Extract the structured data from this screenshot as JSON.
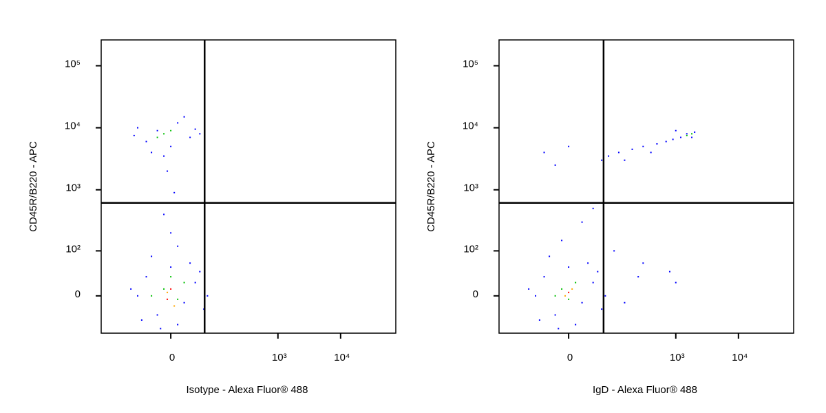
{
  "chart_data": [
    {
      "type": "scatter",
      "x_label": "Isotype - Alexa Fluor® 488",
      "y_label": "CD45R/B220 - APC",
      "xlim": [
        -250,
        76000
      ],
      "ylim": [
        -73,
        261000
      ],
      "xticks": [
        0,
        {
          "value": 1000,
          "label": "10³"
        },
        {
          "value": 10000,
          "label": "10⁴"
        }
      ],
      "yticks": [
        0,
        {
          "value": 100,
          "label": "10²"
        },
        {
          "value": 1000,
          "label": "10³"
        },
        {
          "value": 10000,
          "label": "10⁴"
        },
        {
          "value": 100000,
          "label": "10⁵"
        }
      ],
      "gate_x": 62,
      "gate_y": 614,
      "series": [
        {
          "color": "#0000ff",
          "x": [
            -40,
            -20,
            10,
            30,
            -60,
            0,
            40,
            -30,
            20,
            -10,
            50,
            -70,
            -5,
            5,
            -10,
            0,
            10,
            -60,
            -40,
            -20,
            0,
            20,
            40,
            60,
            -50,
            30,
            -30,
            10,
            50,
            -80,
            70,
            -15
          ],
          "values": [
            6000,
            9000,
            12000,
            7000,
            10000,
            5000,
            9500,
            4000,
            15000,
            3500,
            8000,
            7500,
            2000,
            900,
            400,
            200,
            120,
            0,
            30,
            -30,
            50,
            -10,
            20,
            -20,
            -40,
            60,
            80,
            -50,
            40,
            10,
            0,
            -60
          ]
        },
        {
          "color": "#00c000",
          "x": [
            -10,
            0,
            -20,
            -10,
            10,
            -30,
            0,
            20
          ],
          "values": [
            8000,
            9000,
            7000,
            10,
            -5,
            0,
            30,
            20
          ]
        },
        {
          "color": "#ffa500",
          "x": [
            -5,
            5
          ],
          "values": [
            5,
            -15
          ]
        },
        {
          "color": "#ff0000",
          "x": [
            -5,
            0
          ],
          "values": [
            -5,
            10
          ]
        }
      ]
    },
    {
      "type": "scatter",
      "x_label": "IgD - Alexa Fluor® 488",
      "y_label": "CD45R/B220 - APC",
      "xlim": [
        -250,
        76000
      ],
      "ylim": [
        -73,
        261000
      ],
      "xticks": [
        0,
        {
          "value": 1000,
          "label": "10³"
        },
        {
          "value": 10000,
          "label": "10⁴"
        }
      ],
      "yticks": [
        0,
        {
          "value": 100,
          "label": "10²"
        },
        {
          "value": 1000,
          "label": "10³"
        },
        {
          "value": 10000,
          "label": "10⁴"
        },
        {
          "value": 100000,
          "label": "10⁵"
        }
      ],
      "gate_x": 65,
      "gate_y": 614,
      "series": [
        {
          "color": "#0000ff",
          "x": [
            80,
            120,
            200,
            300,
            500,
            700,
            900,
            1200,
            1500,
            2000,
            1000,
            1800,
            400,
            150,
            60,
            -20,
            -40,
            0,
            20,
            -10,
            40,
            100,
            300,
            800,
            1000,
            250,
            150,
            -60,
            -40,
            -20,
            0,
            20,
            40,
            60,
            -50,
            30,
            -30,
            10,
            50,
            -80,
            70,
            -15
          ],
          "values": [
            3500,
            4000,
            4500,
            5000,
            5500,
            6000,
            6500,
            7000,
            8000,
            8500,
            9000,
            7000,
            4000,
            3000,
            3000,
            2500,
            4000,
            5000,
            300,
            150,
            500,
            100,
            60,
            40,
            20,
            30,
            -10,
            0,
            30,
            -30,
            50,
            -10,
            20,
            -20,
            -40,
            60,
            80,
            -50,
            40,
            10,
            0,
            -60
          ]
        },
        {
          "color": "#00c000",
          "x": [
            1500,
            1800,
            -10,
            0,
            10,
            -20
          ],
          "values": [
            7500,
            8000,
            10,
            -5,
            20,
            0
          ]
        },
        {
          "color": "#ffa500",
          "x": [
            -5,
            5
          ],
          "values": [
            0,
            10
          ]
        },
        {
          "color": "#ff0000",
          "x": [
            0
          ],
          "values": [
            5
          ]
        }
      ]
    }
  ]
}
